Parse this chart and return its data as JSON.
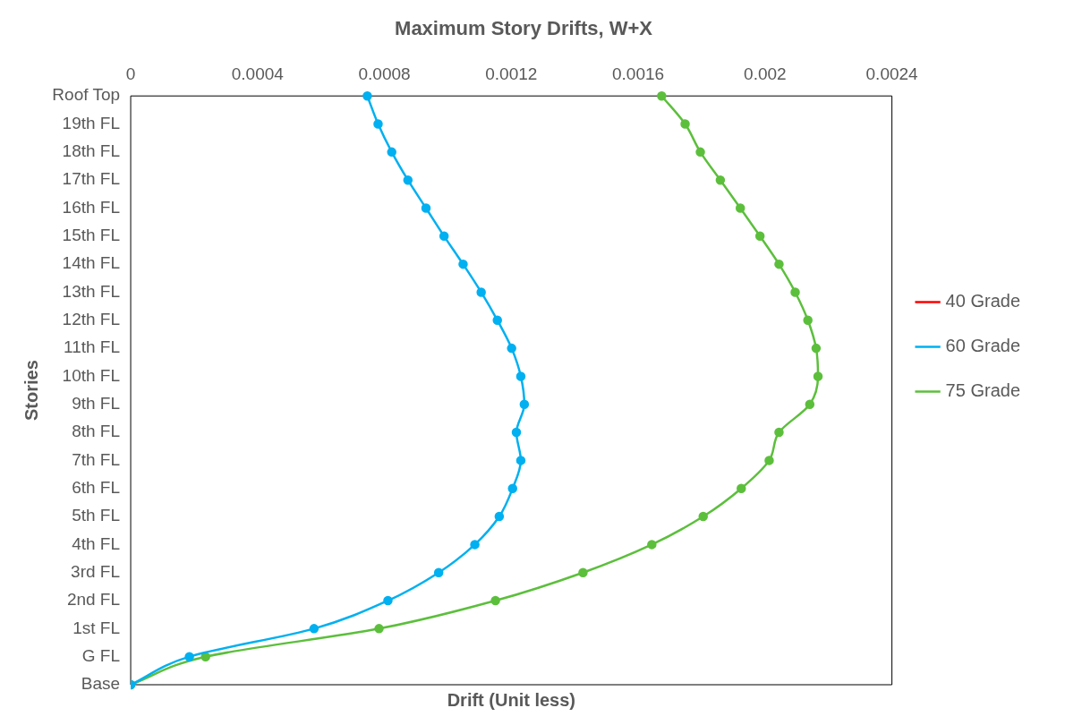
{
  "chart_data": {
    "type": "line",
    "orientation": "horizontal",
    "title": "Maximum Story Drifts, W+X",
    "xlabel": "Drift (Unit less)",
    "ylabel": "Stories",
    "categories": [
      "Roof Top",
      "19th FL",
      "18th FL",
      "17th FL",
      "16th FL",
      "15th FL",
      "14th FL",
      "13th FL",
      "12th FL",
      "11th FL",
      "10th FL",
      "9th FL",
      "8th FL",
      "7th FL",
      "6th FL",
      "5th FL",
      "4th FL",
      "3rd FL",
      "2nd FL",
      "1st FL",
      "G FL",
      "Base"
    ],
    "series": [
      {
        "name": "40 Grade",
        "color": "#ff0000",
        "values": [
          null,
          null,
          null,
          null,
          null,
          null,
          null,
          null,
          null,
          null,
          null,
          null,
          null,
          null,
          null,
          null,
          null,
          null,
          null,
          null,
          null,
          null
        ]
      },
      {
        "name": "60 Grade",
        "color": "#00b0f0",
        "values": [
          0.000746,
          0.00078,
          0.000823,
          0.000874,
          0.000931,
          0.000988,
          0.001048,
          0.001105,
          0.001156,
          0.001201,
          0.00123,
          0.001241,
          0.001216,
          0.00123,
          0.001204,
          0.001162,
          0.001085,
          0.000971,
          0.000811,
          0.000578,
          0.000185,
          0
        ]
      },
      {
        "name": "75 Grade",
        "color": "#5cbf3c",
        "values": [
          0.001674,
          0.001748,
          0.001796,
          0.001859,
          0.001922,
          0.001984,
          0.002044,
          0.002095,
          0.002135,
          0.002161,
          0.002167,
          0.002141,
          0.002044,
          0.002013,
          0.001925,
          0.001805,
          0.001643,
          0.001426,
          0.00115,
          0.000783,
          0.000236,
          0
        ]
      }
    ],
    "xlim": [
      0,
      0.0024
    ],
    "xticks": [
      0,
      0.0004,
      0.0008,
      0.0012,
      0.0016,
      0.002,
      0.0024
    ],
    "grid": false,
    "legend": "right",
    "marker": "circle"
  }
}
